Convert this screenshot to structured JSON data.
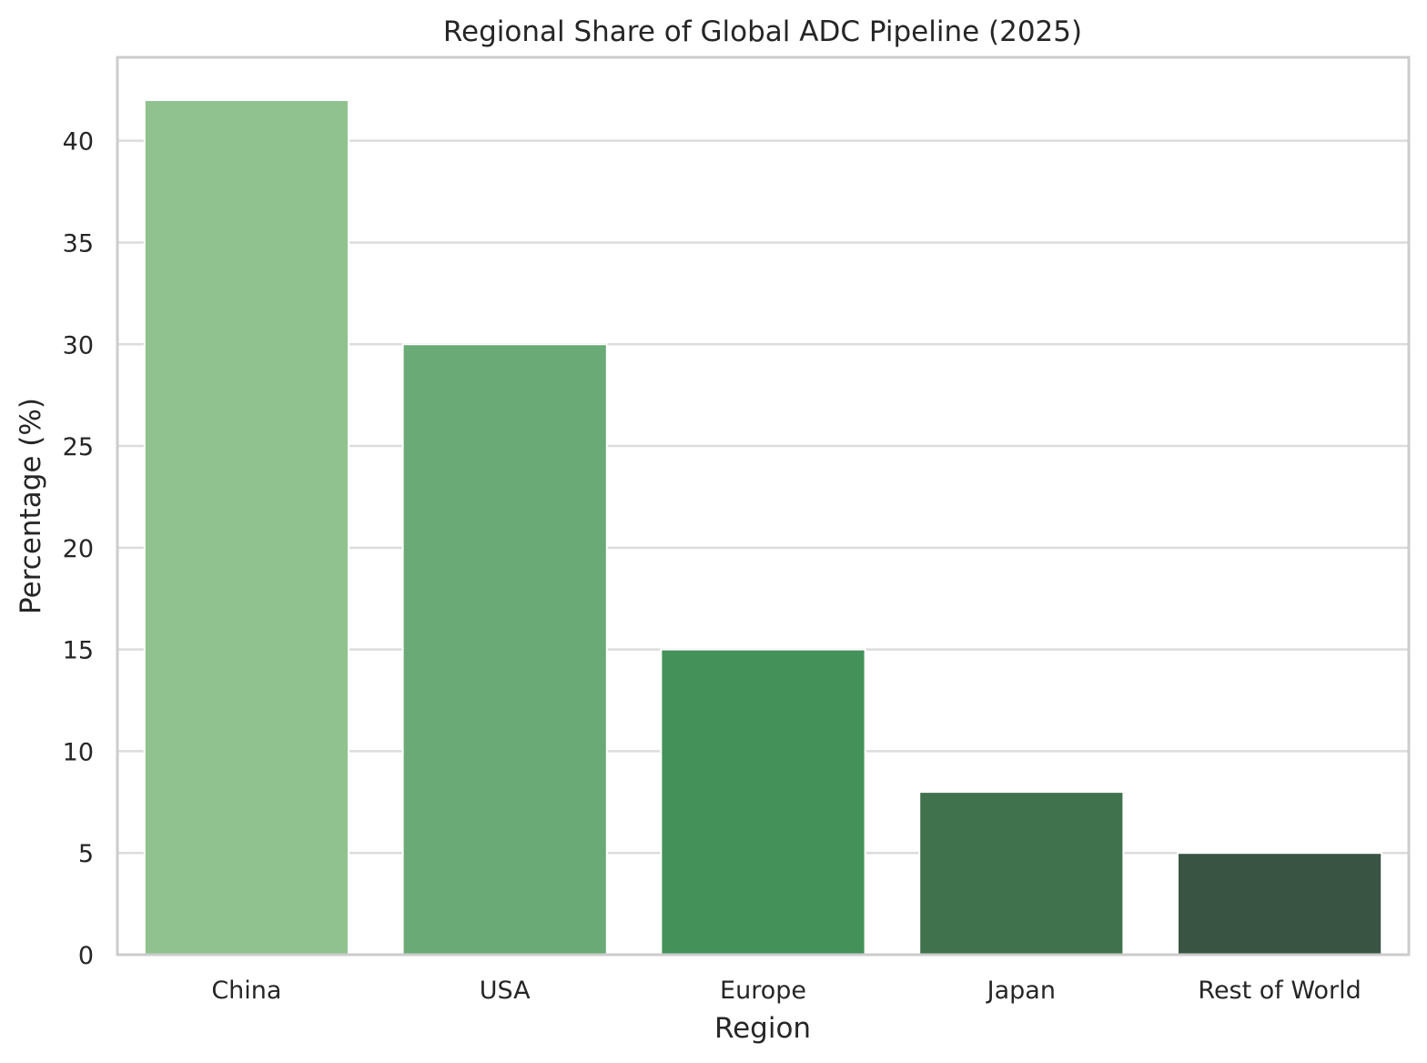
{
  "chart_data": {
    "type": "bar",
    "title": "Regional Share of Global ADC Pipeline (2025)",
    "xlabel": "Region",
    "ylabel": "Percentage (%)",
    "categories": [
      "China",
      "USA",
      "Europe",
      "Japan",
      "Rest of World"
    ],
    "values": [
      42,
      30,
      15,
      8,
      5
    ],
    "colors": [
      "#90c290",
      "#6aaa76",
      "#44915a",
      "#41724e",
      "#3a5444"
    ],
    "ylim": [
      0,
      44.1
    ],
    "yticks": [
      0,
      5,
      10,
      15,
      20,
      25,
      30,
      35,
      40
    ],
    "grid": true,
    "legend": "none"
  }
}
